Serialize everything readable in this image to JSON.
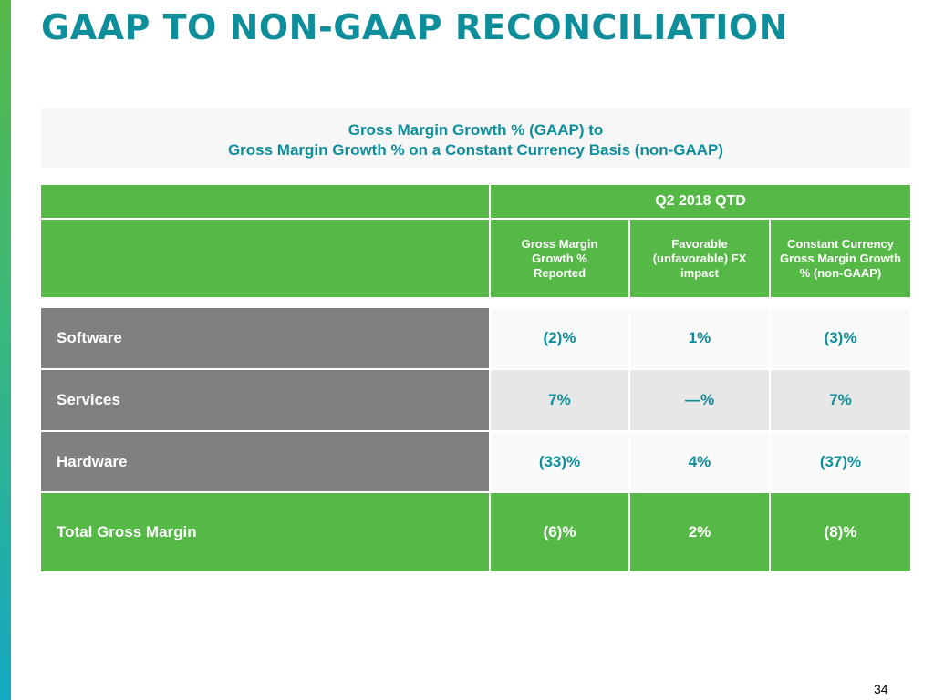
{
  "title": "GAAP TO NON-GAAP RECONCILIATION",
  "subtitle": {
    "line1": "Gross Margin Growth % (GAAP) to",
    "line2": "Gross Margin Growth % on a Constant Currency Basis (non-GAAP)"
  },
  "table": {
    "period": "Q2 2018 QTD",
    "columns": [
      "Gross Margin Growth % Reported",
      "Favorable (unfavorable) FX impact",
      "Constant Currency Gross Margin Growth % (non-GAAP)"
    ],
    "rows": [
      {
        "label": "Software",
        "values": [
          "(2)%",
          "1%",
          "(3)%"
        ]
      },
      {
        "label": "Services",
        "values": [
          "7%",
          "—%",
          "7%"
        ]
      },
      {
        "label": "Hardware",
        "values": [
          "(33)%",
          "4%",
          "(37)%"
        ]
      },
      {
        "label": "Total Gross Margin",
        "values": [
          "(6)%",
          "2%",
          "(8)%"
        ]
      }
    ]
  },
  "page_number": "34",
  "colors": {
    "brand_teal": "#0e8e9b",
    "brand_green": "#56b847",
    "row_gray": "#808080"
  }
}
